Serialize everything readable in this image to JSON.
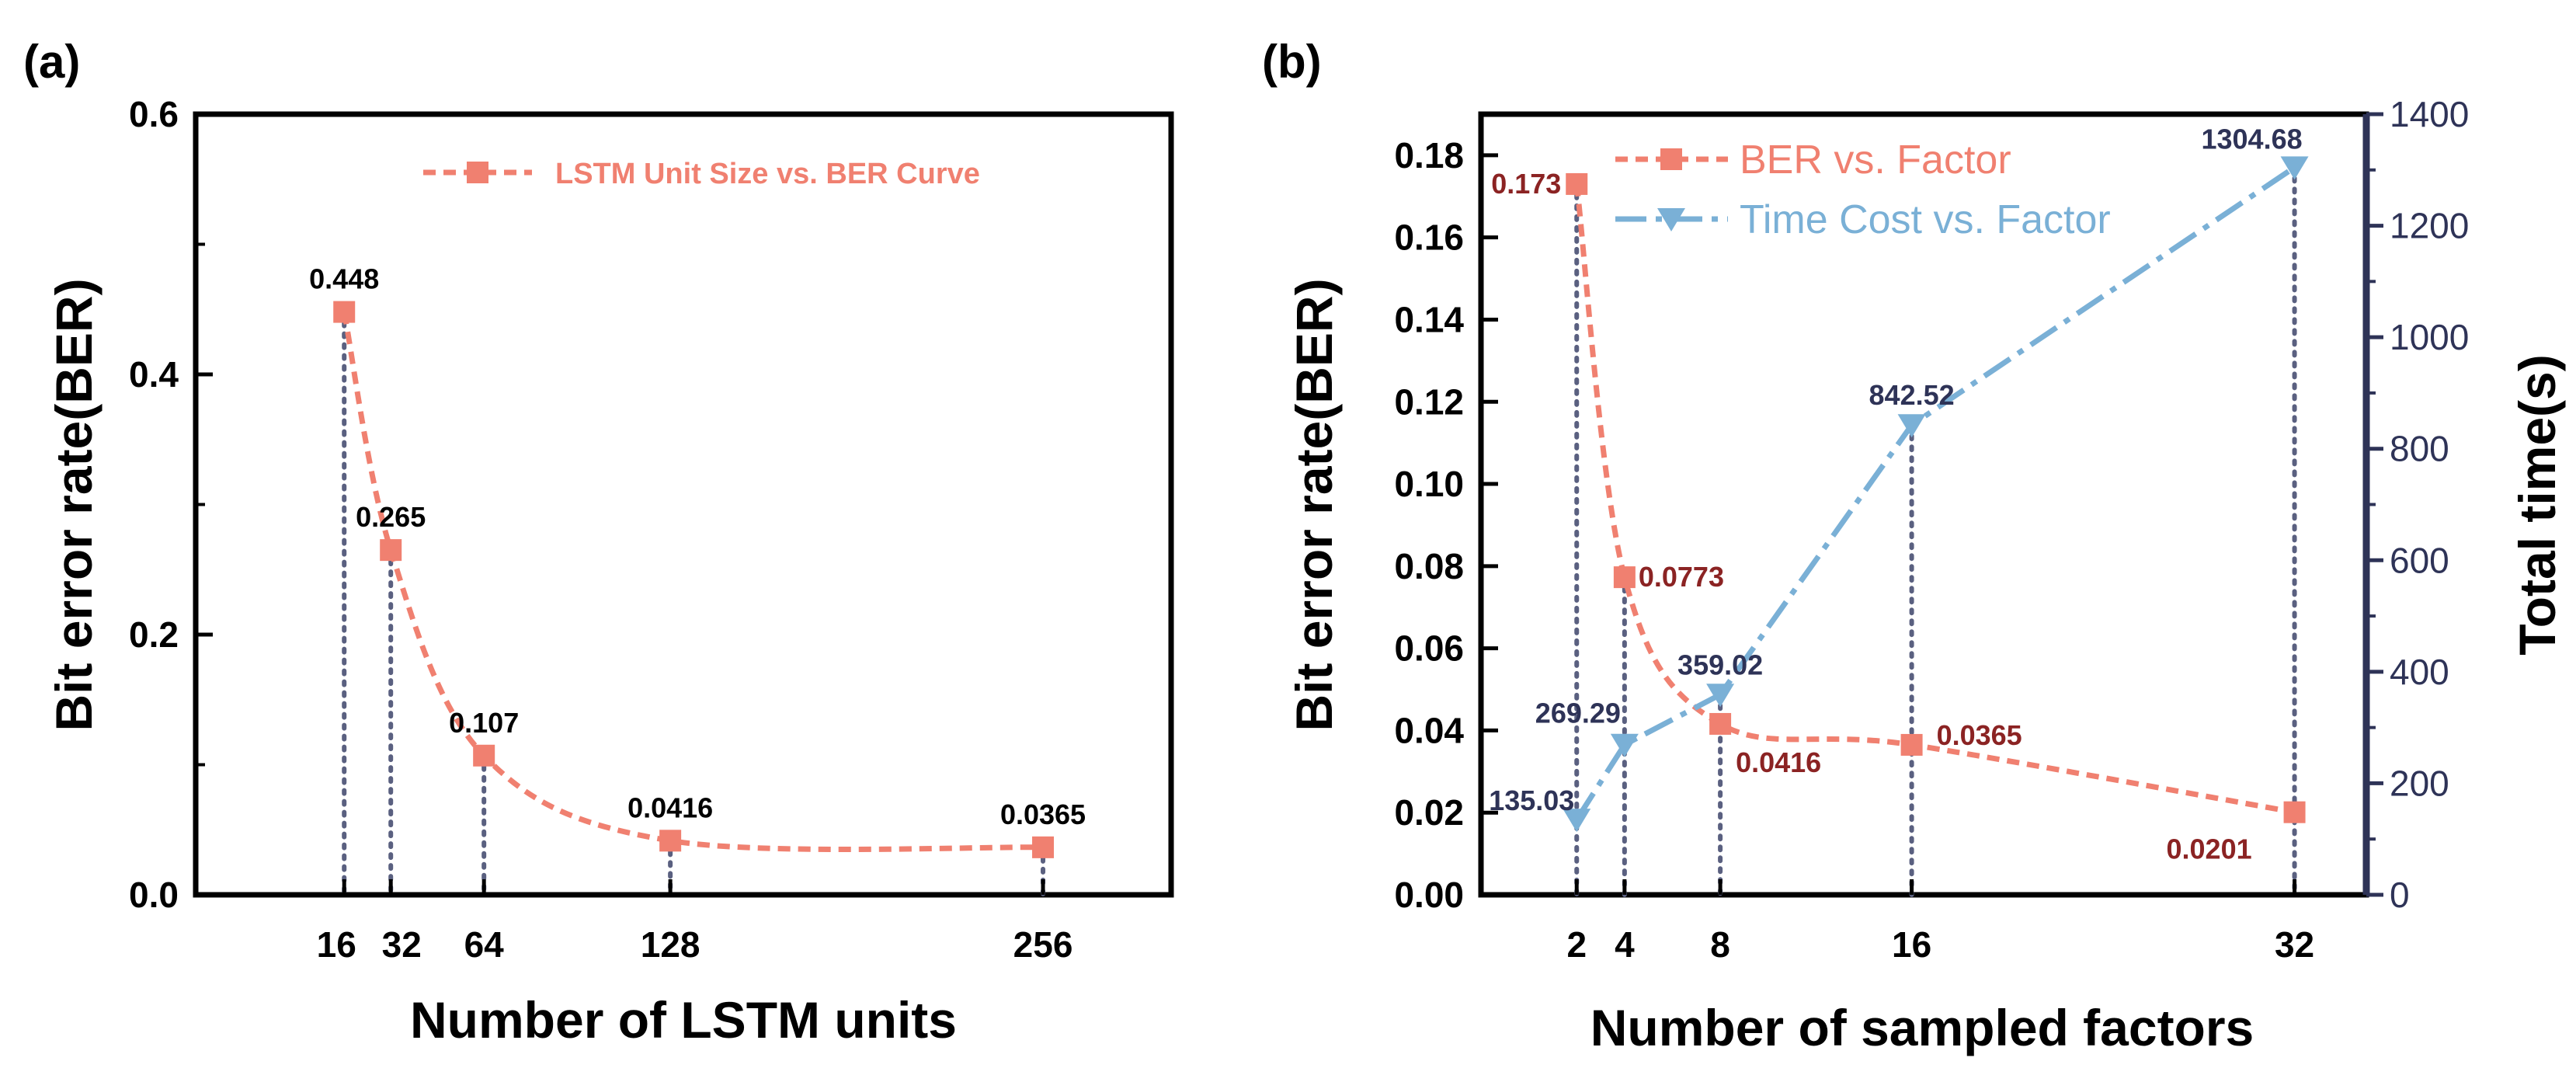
{
  "chart_data": [
    {
      "type": "line",
      "panel_label": "(a)",
      "xlabel": "Number of LSTM units",
      "ylabel": "Bit error rate(BER)",
      "x_ticks": [
        16,
        32,
        64,
        128,
        256
      ],
      "x_tick_labels": [
        "16",
        "32",
        "64",
        "128",
        "256"
      ],
      "xlim": [
        -35,
        300
      ],
      "ylim": [
        0,
        0.6
      ],
      "y_ticks": [
        0.0,
        0.2,
        0.4,
        0.6
      ],
      "y_tick_labels": [
        "0.0",
        "0.2",
        "0.4",
        "0.6"
      ],
      "legend_position": "top-right",
      "series": [
        {
          "name": "LSTM Unit Size vs. BER Curve",
          "color": "#f08070",
          "x": [
            16,
            32,
            64,
            128,
            256
          ],
          "values": [
            0.448,
            0.265,
            0.107,
            0.0416,
            0.0365
          ],
          "data_labels": [
            "0.448",
            "0.265",
            "0.107",
            "0.0416",
            "0.0365"
          ]
        }
      ]
    },
    {
      "type": "line",
      "panel_label": "(b)",
      "xlabel": "Number of sampled factors",
      "ylabel": "Bit error rate(BER)",
      "ylabel_right": "Total time(s)",
      "x_ticks": [
        2,
        4,
        8,
        16,
        32
      ],
      "x_tick_labels": [
        "2",
        "4",
        "8",
        "16",
        "32"
      ],
      "xlim": [
        -2,
        35
      ],
      "ylim": [
        0,
        0.19
      ],
      "y_ticks": [
        0.0,
        0.02,
        0.04,
        0.06,
        0.08,
        0.1,
        0.12,
        0.14,
        0.16,
        0.18
      ],
      "y_tick_labels": [
        "0.00",
        "0.02",
        "0.04",
        "0.06",
        "0.08",
        "0.10",
        "0.12",
        "0.14",
        "0.16",
        "0.18"
      ],
      "ylim_right": [
        0,
        1400
      ],
      "y_ticks_right": [
        0,
        200,
        400,
        600,
        800,
        1000,
        1200,
        1400
      ],
      "y_tick_labels_right": [
        "0",
        "200",
        "400",
        "600",
        "800",
        "1000",
        "1200",
        "1400"
      ],
      "legend_position": "top-left",
      "series": [
        {
          "name": "BER vs. Factor",
          "axis": "left",
          "color": "#f08070",
          "label_color": "#8b2323",
          "x": [
            2,
            4,
            8,
            16,
            32
          ],
          "values": [
            0.173,
            0.0773,
            0.0416,
            0.0365,
            0.0201
          ],
          "data_labels": [
            "0.173",
            "0.0773",
            "0.0416",
            "0.0365",
            "0.0201"
          ]
        },
        {
          "name": "Time Cost vs. Factor",
          "axis": "right",
          "color": "#7ab0d6",
          "label_color": "#2e3357",
          "x": [
            2,
            4,
            8,
            16,
            32
          ],
          "values": [
            135.03,
            269.29,
            359.02,
            842.52,
            1304.68
          ],
          "data_labels": [
            "135.03",
            "269.29",
            "359.02",
            "842.52",
            "1304.68"
          ]
        }
      ]
    }
  ]
}
